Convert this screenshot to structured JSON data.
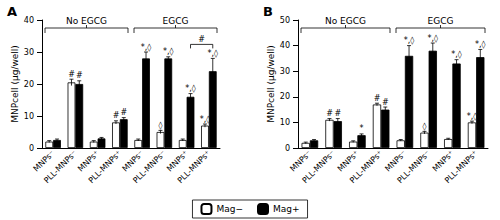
{
  "chart_data": [
    {
      "type": "bar",
      "title": "A",
      "y_label": "MNPcell (µg/well)",
      "categories": [
        "MNPs⁻",
        "PLL-MNPs⁻",
        "MNPs⁺",
        "PLL-MNPs⁺",
        "MNPs⁻",
        "PLL-MNPs⁻",
        "MNPs⁺",
        "PLL-MNPs⁺"
      ],
      "groups": [
        {
          "label": "No EGCG",
          "categories": 4
        },
        {
          "label": "EGCG",
          "categories": 4
        }
      ],
      "series": [
        {
          "name": "Mag−",
          "color": "#ffffff",
          "values": [
            2,
            20.5,
            2,
            8,
            2.5,
            5,
            2.5,
            7
          ],
          "errors": [
            0.3,
            1,
            0.3,
            0.5,
            0.3,
            0.5,
            0.3,
            0.5
          ],
          "annotations": [
            null,
            "#",
            null,
            "#",
            null,
            "◊",
            null,
            "*,◊"
          ]
        },
        {
          "name": "Mag+",
          "color": "#000000",
          "values": [
            2.5,
            20,
            3,
            9,
            28,
            28,
            16,
            24
          ],
          "errors": [
            0.3,
            1,
            0.3,
            0.5,
            2,
            0.5,
            1,
            4
          ],
          "annotations": [
            null,
            "#",
            null,
            "#",
            "*,◊",
            "*,◊",
            "*,◊",
            "*,◊"
          ]
        }
      ],
      "brackets": [
        {
          "label": "#",
          "series": "Mag+",
          "from": 6,
          "to": 7
        }
      ],
      "ylim": [
        0,
        40
      ],
      "yticks": [
        0,
        10,
        20,
        30,
        40
      ],
      "grid": false,
      "legend": "bottom"
    },
    {
      "type": "bar",
      "title": "B",
      "y_label": "MNPcell (µg/well)",
      "categories": [
        "MNPs⁻",
        "PLL-MNPs⁻",
        "MNPs⁺",
        "PLL-MNPs⁺",
        "MNPs⁻",
        "PLL-MNPs⁻",
        "MNPs⁺",
        "PLL-MNPs⁺"
      ],
      "groups": [
        {
          "label": "No EGCG",
          "categories": 4
        },
        {
          "label": "EGCG",
          "categories": 4
        }
      ],
      "series": [
        {
          "name": "Mag−",
          "color": "#ffffff",
          "values": [
            2,
            11,
            2.5,
            17,
            3,
            6,
            3.5,
            10
          ],
          "errors": [
            0.3,
            0.5,
            0.3,
            0.5,
            0.3,
            0.5,
            0.3,
            0.5
          ],
          "annotations": [
            null,
            "#",
            null,
            "#",
            null,
            "◊",
            null,
            "*,◊"
          ]
        },
        {
          "name": "Mag+",
          "color": "#000000",
          "values": [
            3,
            10.5,
            5,
            15,
            36,
            38,
            33,
            35.5
          ],
          "errors": [
            0.3,
            1,
            0.5,
            1,
            4,
            3,
            1.5,
            3
          ],
          "annotations": [
            null,
            "#",
            "*",
            "#",
            "*,◊",
            "*,◊",
            "*,◊",
            "*,◊"
          ]
        }
      ],
      "brackets": [],
      "ylim": [
        0,
        50
      ],
      "yticks": [
        0,
        10,
        20,
        30,
        40,
        50
      ],
      "grid": false,
      "legend": "bottom"
    }
  ]
}
